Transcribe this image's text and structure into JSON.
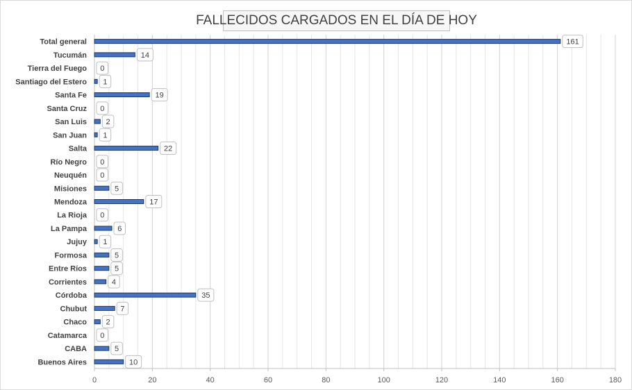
{
  "chart_data": {
    "type": "bar",
    "orientation": "horizontal",
    "title": "FALLECIDOS CARGADOS EN EL DÍA DE HOY",
    "xlabel": "",
    "ylabel": "",
    "xlim": [
      0,
      180
    ],
    "x_ticks": [
      0,
      20,
      40,
      60,
      80,
      100,
      120,
      140,
      160,
      180
    ],
    "grid": true,
    "legend": "none",
    "bar_color": "#4472c4",
    "bar_edge_color": "#203864",
    "categories": [
      "Total general",
      "Tucumán",
      "Tierra del Fuego",
      "Santiago del Estero",
      "Santa Fe",
      "Santa Cruz",
      "San Luis",
      "San Juan",
      "Salta",
      "Río Negro",
      "Neuquén",
      "Misiones",
      "Mendoza",
      "La Rioja",
      "La Pampa",
      "Jujuy",
      "Formosa",
      "Entre Ríos",
      "Corrientes",
      "Córdoba",
      "Chubut",
      "Chaco",
      "Catamarca",
      "CABA",
      "Buenos Aires"
    ],
    "values": [
      161,
      14,
      0,
      1,
      19,
      0,
      2,
      1,
      22,
      0,
      0,
      5,
      17,
      0,
      6,
      1,
      5,
      5,
      4,
      35,
      7,
      2,
      0,
      5,
      10
    ]
  }
}
